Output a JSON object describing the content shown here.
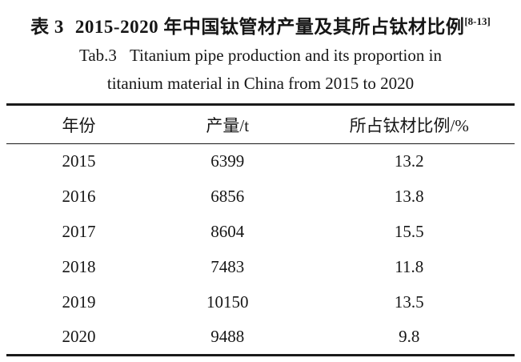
{
  "caption": {
    "zh": {
      "label": "表 3",
      "text": "2015-2020 年中国钛管材产量及其所占钛材比例",
      "citation": "[8-13]"
    },
    "en": {
      "label": "Tab.3",
      "line1": "Titanium pipe production and its proportion in",
      "line2": "titanium material in China from 2015 to 2020"
    }
  },
  "table": {
    "columns": [
      "年份",
      "产量/t",
      "所占钛材比例/%"
    ],
    "rows": [
      {
        "year": "2015",
        "production": "6399",
        "proportion": "13.2"
      },
      {
        "year": "2016",
        "production": "6856",
        "proportion": "13.8"
      },
      {
        "year": "2017",
        "production": "8604",
        "proportion": "15.5"
      },
      {
        "year": "2018",
        "production": "7483",
        "proportion": "11.8"
      },
      {
        "year": "2019",
        "production": "10150",
        "proportion": "13.5"
      },
      {
        "year": "2020",
        "production": "9488",
        "proportion": "9.8"
      }
    ]
  }
}
